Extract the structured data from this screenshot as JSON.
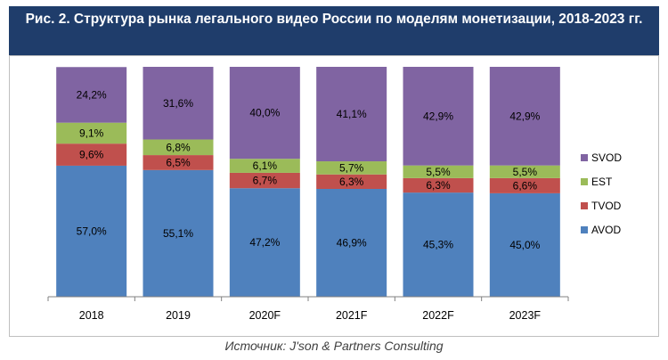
{
  "header": {
    "title": "Рис. 2. Структура рынка легального видео России по моделям монетизации, 2018-2023 гг."
  },
  "chart_data": {
    "type": "bar",
    "stacked": true,
    "percent_stacked": true,
    "title": "Рис. 2. Структура рынка легального видео России по моделям монетизации, 2018-2023 гг.",
    "categories": [
      "2018",
      "2019",
      "2020F",
      "2021F",
      "2022F",
      "2023F"
    ],
    "series": [
      {
        "name": "AVOD",
        "color": "#4f81bd",
        "values": [
          57.0,
          55.1,
          47.2,
          46.9,
          45.3,
          45.0
        ],
        "labels": [
          "57,0%",
          "55,1%",
          "47,2%",
          "46,9%",
          "45,3%",
          "45,0%"
        ]
      },
      {
        "name": "TVOD",
        "color": "#c0504d",
        "values": [
          9.6,
          6.5,
          6.7,
          6.3,
          6.3,
          6.6
        ],
        "labels": [
          "9,6%",
          "6,5%",
          "6,7%",
          "6,3%",
          "6,3%",
          "6,6%"
        ]
      },
      {
        "name": "EST",
        "color": "#9bbb59",
        "values": [
          9.1,
          6.8,
          6.1,
          5.7,
          5.5,
          5.5
        ],
        "labels": [
          "9,1%",
          "6,8%",
          "6,1%",
          "5,7%",
          "5,5%",
          "5,5%"
        ]
      },
      {
        "name": "SVOD",
        "color": "#8064a2",
        "values": [
          24.2,
          31.6,
          40.0,
          41.1,
          42.9,
          42.9
        ],
        "labels": [
          "24,2%",
          "31,6%",
          "40,0%",
          "41,1%",
          "42,9%",
          "42,9%"
        ]
      }
    ],
    "legend_order": [
      "SVOD",
      "EST",
      "TVOD",
      "AVOD"
    ],
    "legend_position": "right",
    "ylim": [
      0,
      100
    ],
    "grid": false,
    "xlabel": "",
    "ylabel": ""
  },
  "footer": {
    "source": "Источник: J'son & Partners Consulting"
  }
}
